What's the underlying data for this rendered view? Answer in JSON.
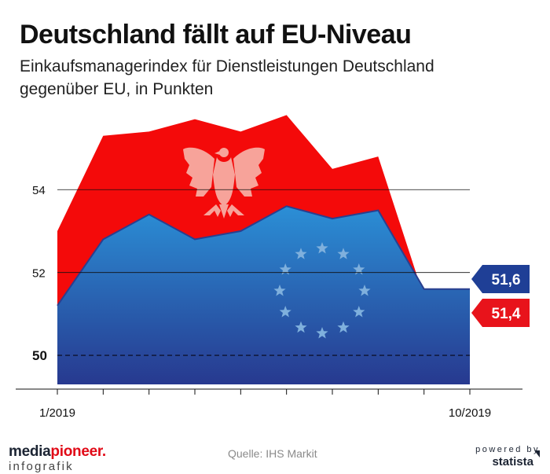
{
  "title": "Deutschland fällt auf EU-Niveau",
  "subtitle_line1": "Einkaufsmanagerindex für Dienstleistungen Deutschland",
  "subtitle_line2": "gegenüber EU, in Punkten",
  "source": "Quelle: IHS Markit",
  "branding": {
    "left_name_part1": "media",
    "left_name_part2": "pioneer",
    "left_name_dot": ".",
    "left_sub": "infografik",
    "powered_by": "powered by",
    "statista": "statista"
  },
  "colors": {
    "germany": "#f40a0a",
    "eu_light": "#2b8fd6",
    "eu_dark": "#27398f",
    "label_blue": "#1f3f96",
    "label_red": "#e8131b"
  },
  "icons": [
    "german-eagle-icon",
    "eu-stars-icon"
  ],
  "chart_data": {
    "type": "area",
    "title": "Deutschland fällt auf EU-Niveau",
    "x": [
      "1/2019",
      "2/2019",
      "3/2019",
      "4/2019",
      "5/2019",
      "6/2019",
      "7/2019",
      "8/2019",
      "9/2019",
      "10/2019"
    ],
    "x_tick_labels": [
      "1/2019",
      "10/2019"
    ],
    "series": [
      {
        "name": "Deutschland",
        "color": "#f40a0a",
        "values": [
          53.0,
          55.3,
          55.4,
          55.7,
          55.4,
          55.8,
          54.5,
          54.8,
          51.4,
          51.4
        ]
      },
      {
        "name": "EU",
        "color": "#2b8fd6",
        "values": [
          51.2,
          52.8,
          53.4,
          52.8,
          53.0,
          53.6,
          53.3,
          53.5,
          51.6,
          51.6
        ]
      }
    ],
    "end_labels": [
      {
        "series": "EU",
        "text": "51,6"
      },
      {
        "series": "Deutschland",
        "text": "51,4"
      }
    ],
    "yticks": [
      50,
      52,
      54
    ],
    "ylim": [
      49.3,
      56.3
    ],
    "reference_line": 50,
    "grid": true
  }
}
